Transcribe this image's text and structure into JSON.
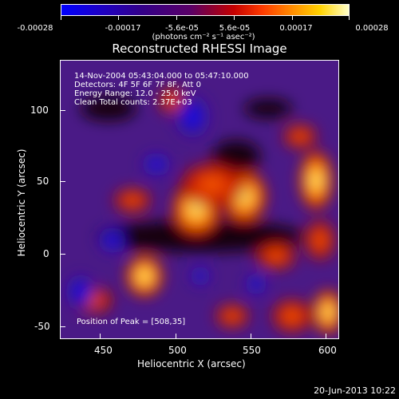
{
  "colorbar": {
    "tick_labels": [
      "-0.00028",
      "-0.00017",
      "-5.6e-05",
      "5.6e-05",
      "0.00017",
      "0.00028"
    ],
    "units": "(photons cm⁻² s⁻¹ asec⁻²)",
    "colors": [
      "#0000ff",
      "#2200cc",
      "#330088",
      "#550066",
      "#aa0000",
      "#ff3300",
      "#ff8800",
      "#ffdd00",
      "#ffffff"
    ]
  },
  "plot": {
    "title": "Reconstructed RHESSI Image",
    "x_label": "Heliocentric X (arcsec)",
    "y_label": "Heliocentric Y (arcsec)",
    "x_ticks": [
      "450",
      "500",
      "550",
      "600"
    ],
    "y_ticks": [
      "100",
      "50",
      "0",
      "-50"
    ],
    "info": [
      "14-Nov-2004 05:43:04.000 to 05:47:10.000",
      "Detectors: 4F 5F 6F 7F 8F, Att 0",
      "Energy Range: 12.0 - 25.0 keV",
      "Clean    Total counts: 2.37E+03"
    ],
    "peak": "Position of Peak = [508,35]"
  },
  "footer": {
    "date": "20-Jun-2013 10:22"
  }
}
